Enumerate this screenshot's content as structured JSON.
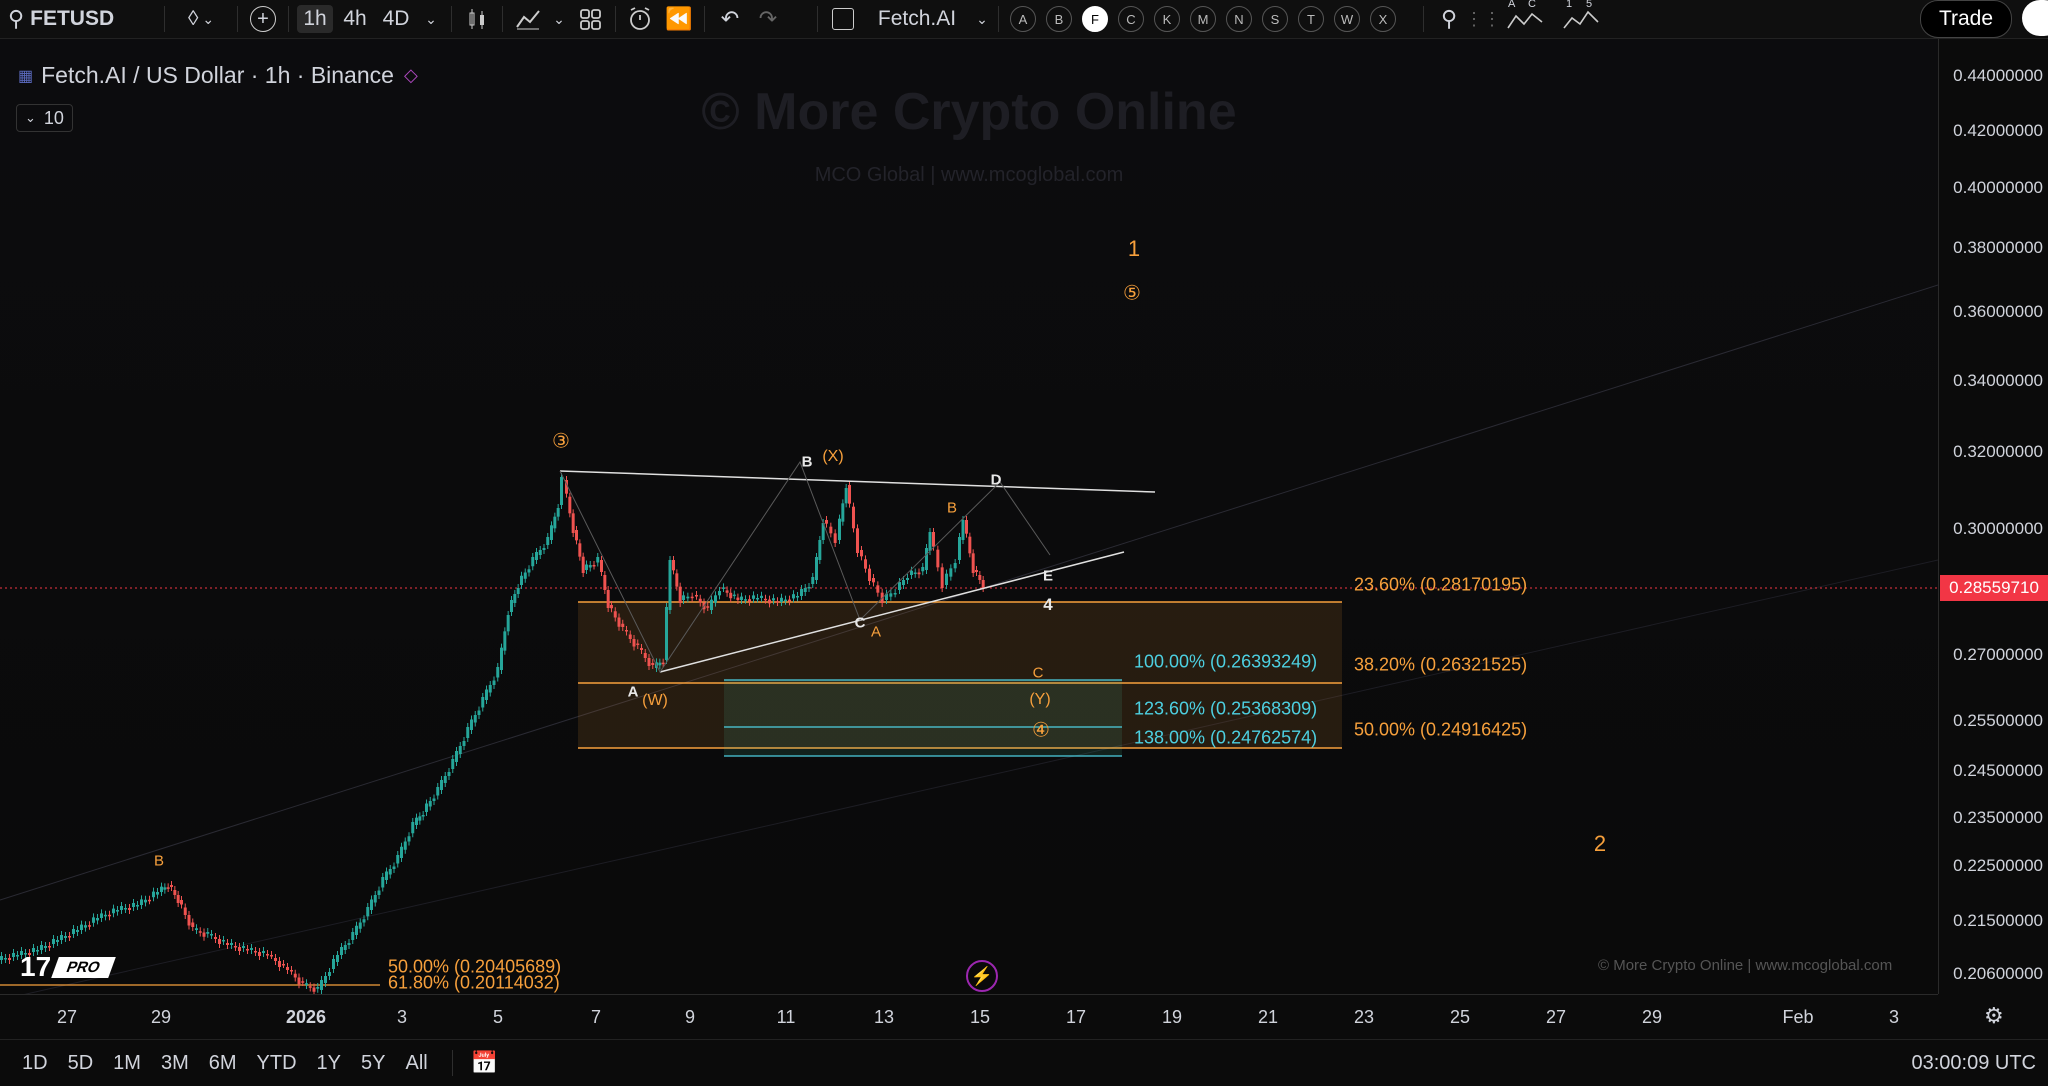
{
  "toolbar": {
    "symbol": "FETUSD",
    "timeframes": [
      "1h",
      "4h",
      "4D"
    ],
    "active_timeframe": "1h",
    "watchlist_name": "Fetch.AI",
    "letters": [
      "A",
      "B",
      "F",
      "C",
      "K",
      "M",
      "N",
      "S",
      "T",
      "W",
      "X"
    ],
    "active_letter": "F",
    "trade_label": "Trade",
    "icon_labels": [
      "A",
      "C",
      "1",
      "5"
    ]
  },
  "chart": {
    "title": "Fetch.AI / US Dollar · 1h · Binance",
    "indicator_count": "10",
    "watermark_main": "© More Crypto Online",
    "watermark_sub": "MCO Global  |  www.mcoglobal.com",
    "watermark_br": "© More Crypto Online  |  www.mcoglobal.com",
    "tv_pro": "PRO",
    "current_price": "0.28559710",
    "price_ticks": [
      "0.44000000",
      "0.42000000",
      "0.40000000",
      "0.38000000",
      "0.36000000",
      "0.34000000",
      "0.32000000",
      "0.30000000",
      "0.27000000",
      "0.25500000",
      "0.24500000",
      "0.23500000",
      "0.22500000",
      "0.21500000",
      "0.20600000"
    ],
    "time_ticks": [
      "27",
      "29",
      "2026",
      "3",
      "5",
      "7",
      "9",
      "11",
      "13",
      "15",
      "17",
      "19",
      "21",
      "23",
      "25",
      "27",
      "29",
      "Feb",
      "3"
    ],
    "fib_retracement": [
      {
        "label": "23.60% (0.28170195)"
      },
      {
        "label": "38.20% (0.26321525)"
      },
      {
        "label": "50.00% (0.24916425)"
      }
    ],
    "fib_extension": [
      {
        "label": "100.00% (0.26393249)"
      },
      {
        "label": "123.60% (0.25368309)"
      },
      {
        "label": "138.00% (0.24762574)"
      }
    ],
    "fib_lower": [
      {
        "label": "50.00% (0.20405689)"
      },
      {
        "label": "61.80% (0.20114032)"
      }
    ],
    "wave_labels": {
      "w3": "③",
      "w5": "⑤",
      "w4c": "④",
      "one": "1",
      "two": "2",
      "X": "(X)",
      "W": "(W)",
      "Y": "(Y)",
      "B_white": "B",
      "D": "D",
      "E": "E",
      "four": "4",
      "C_white": "C",
      "A_white": "A",
      "B_orange": "B",
      "A_orange": "A",
      "C_orange": "C",
      "B_low": "B"
    },
    "colors": {
      "orange": "#f7a03c",
      "cyan": "#4dd0e1",
      "red": "#f23645",
      "up": "#26a69a",
      "down": "#ef5350"
    }
  },
  "bottombar": {
    "ranges": [
      "1D",
      "5D",
      "1M",
      "3M",
      "6M",
      "YTD",
      "1Y",
      "5Y",
      "All"
    ],
    "clock": "03:00:09 UTC"
  }
}
